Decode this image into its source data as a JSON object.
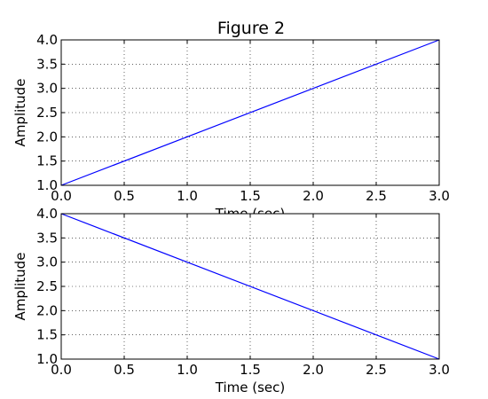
{
  "figure": {
    "title": "Figure 2"
  },
  "chart_data": [
    {
      "type": "line",
      "title": "Figure 2",
      "xlabel": "Time (sec)",
      "ylabel": "Amplitude",
      "xlim": [
        0,
        3
      ],
      "ylim": [
        1,
        4
      ],
      "xticks": [
        "0.0",
        "0.5",
        "1.0",
        "1.5",
        "2.0",
        "2.5",
        "3.0"
      ],
      "yticks": [
        "1.0",
        "1.5",
        "2.0",
        "2.5",
        "3.0",
        "3.5",
        "4.0"
      ],
      "grid": true,
      "series": [
        {
          "x": [
            0,
            3
          ],
          "y": [
            1,
            4
          ],
          "color": "#0000ff"
        }
      ]
    },
    {
      "type": "line",
      "title": "",
      "xlabel": "Time (sec)",
      "ylabel": "Amplitude",
      "xlim": [
        0,
        3
      ],
      "ylim": [
        1,
        4
      ],
      "xticks": [
        "0.0",
        "0.5",
        "1.0",
        "1.5",
        "2.0",
        "2.5",
        "3.0"
      ],
      "yticks": [
        "1.0",
        "1.5",
        "2.0",
        "2.5",
        "3.0",
        "3.5",
        "4.0"
      ],
      "grid": true,
      "series": [
        {
          "x": [
            0,
            3
          ],
          "y": [
            4,
            1
          ],
          "color": "#0000ff"
        }
      ]
    }
  ]
}
